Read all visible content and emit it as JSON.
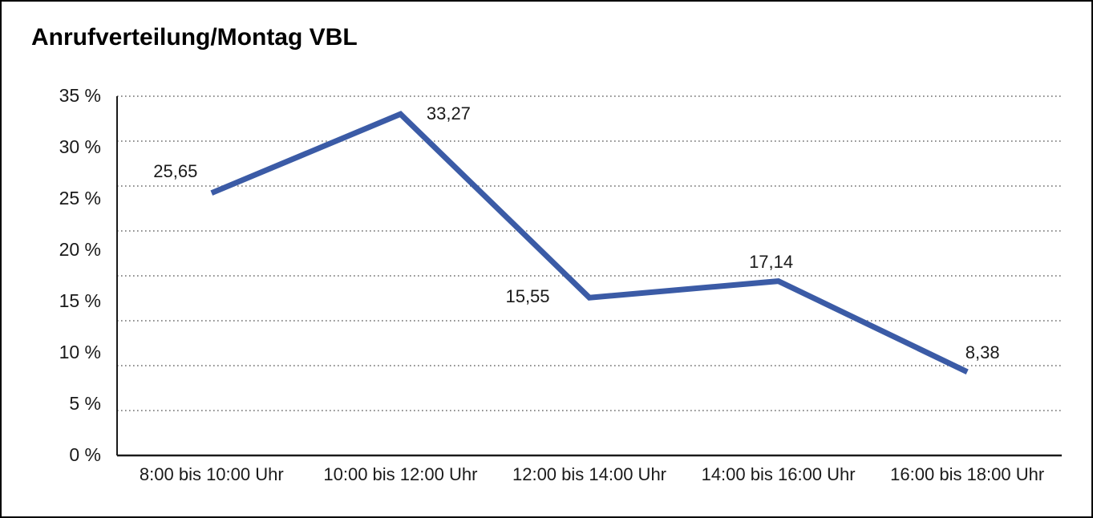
{
  "chart_data": {
    "type": "line",
    "title": "Anrufverteilung/Montag VBL",
    "categories": [
      "8:00 bis 10:00 Uhr",
      "10:00 bis 12:00 Uhr",
      "12:00 bis 14:00 Uhr",
      "14:00 bis 16:00 Uhr",
      "16:00 bis 18:00 Uhr"
    ],
    "series": [
      {
        "values": [
          25.65,
          33.27,
          15.55,
          17.14,
          8.38
        ],
        "point_labels": [
          "25,65",
          "33,27",
          "15,55",
          "17,14",
          "8,38"
        ],
        "color": "#3B5BA6"
      }
    ],
    "y_tick_labels": [
      "35 %",
      "30 %",
      "25 %",
      "20 %",
      "15 %",
      "10 %",
      "5 %",
      "0 %"
    ],
    "ylim": [
      0,
      35
    ],
    "xlabel": "",
    "ylabel": "",
    "grid": "horizontal-dotted",
    "legend": "none",
    "colors": {
      "line": "#3B5BA6",
      "grid_dots": "#4d4d4d",
      "axis": "#1a1a1a",
      "text": "#1a1a1a",
      "frame_border": "#000000",
      "background": "#ffffff"
    }
  }
}
